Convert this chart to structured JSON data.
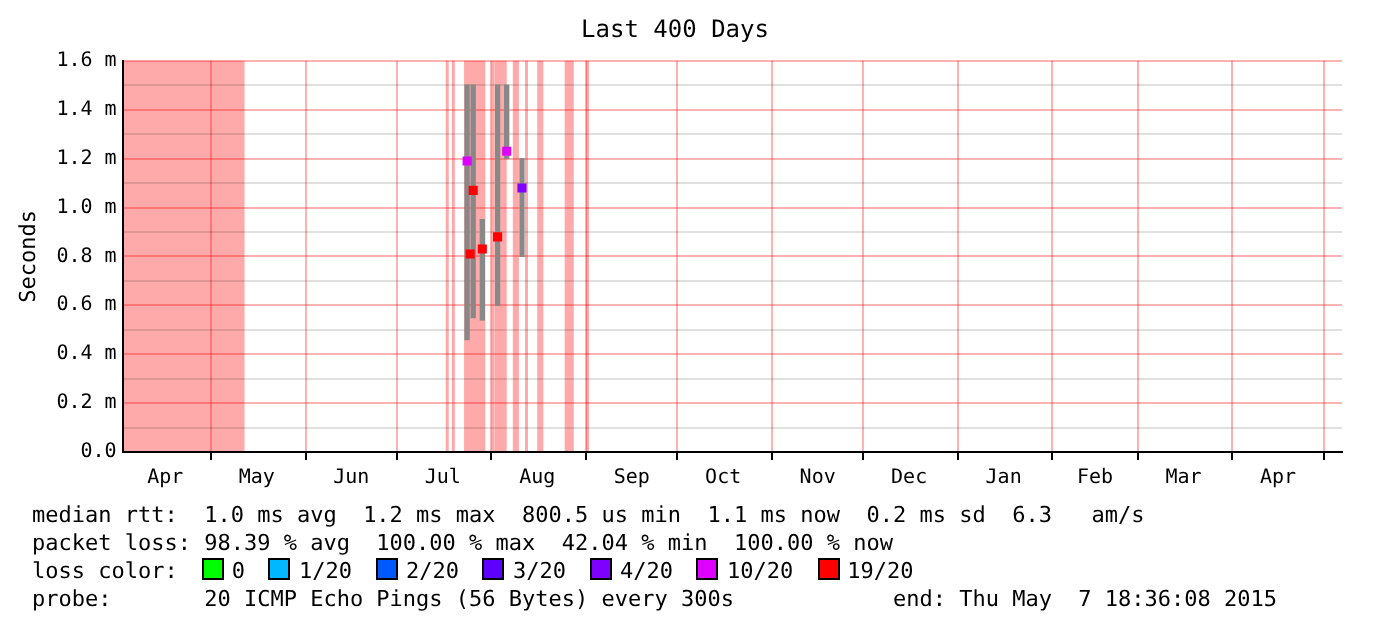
{
  "chart_data": {
    "type": "scatter",
    "title": "Last 400 Days",
    "ylabel": "Seconds",
    "legend_title": "loss color:",
    "legend": "bottom",
    "marker": "square",
    "grid": true,
    "xlim": [
      "2014-04-02",
      "2015-05-07"
    ],
    "xticks": [
      {
        "value": "2014-04-16",
        "label": "Apr"
      },
      {
        "value": "2014-05-01",
        "label": null
      },
      {
        "value": "2014-05-16",
        "label": "May"
      },
      {
        "value": "2014-06-01",
        "label": null
      },
      {
        "value": "2014-06-16",
        "label": "Jun"
      },
      {
        "value": "2014-07-01",
        "label": null
      },
      {
        "value": "2014-07-16",
        "label": "Jul"
      },
      {
        "value": "2014-08-01",
        "label": null
      },
      {
        "value": "2014-08-16",
        "label": "Aug"
      },
      {
        "value": "2014-09-01",
        "label": null
      },
      {
        "value": "2014-09-16",
        "label": "Sep"
      },
      {
        "value": "2014-10-01",
        "label": null
      },
      {
        "value": "2014-10-16",
        "label": "Oct"
      },
      {
        "value": "2014-11-01",
        "label": null
      },
      {
        "value": "2014-11-16",
        "label": "Nov"
      },
      {
        "value": "2014-12-01",
        "label": null
      },
      {
        "value": "2014-12-16",
        "label": "Dec"
      },
      {
        "value": "2015-01-01",
        "label": null
      },
      {
        "value": "2015-01-16",
        "label": "Jan"
      },
      {
        "value": "2015-02-01",
        "label": null
      },
      {
        "value": "2015-02-15",
        "label": "Feb"
      },
      {
        "value": "2015-03-01",
        "label": null
      },
      {
        "value": "2015-03-16",
        "label": "Mar"
      },
      {
        "value": "2015-04-01",
        "label": null
      },
      {
        "value": "2015-04-16",
        "label": "Apr"
      },
      {
        "value": "2015-05-01",
        "label": null
      }
    ],
    "ylim": [
      0,
      1.6
    ],
    "yticks": [
      {
        "value": 0,
        "label": "0.0"
      },
      {
        "value": 0.1,
        "label": null
      },
      {
        "value": 0.2,
        "label": "0.2 m"
      },
      {
        "value": 0.3,
        "label": null
      },
      {
        "value": 0.4,
        "label": "0.4 m"
      },
      {
        "value": 0.5,
        "label": null
      },
      {
        "value": 0.6,
        "label": "0.6 m"
      },
      {
        "value": 0.7,
        "label": null
      },
      {
        "value": 0.8,
        "label": "0.8 m"
      },
      {
        "value": 0.9,
        "label": null
      },
      {
        "value": 1.0,
        "label": "1.0 m"
      },
      {
        "value": 1.1,
        "label": null
      },
      {
        "value": 1.2,
        "label": "1.2 m"
      },
      {
        "value": 1.3,
        "label": null
      },
      {
        "value": 1.4,
        "label": "1.4 m"
      },
      {
        "value": 1.5,
        "label": null
      },
      {
        "value": 1.6,
        "label": "1.6 m"
      }
    ],
    "bands": [
      {
        "axis": "x",
        "from": "2014-04-02",
        "to": "2014-05-12",
        "color": "#ffaaaa"
      },
      {
        "axis": "x",
        "from": "2014-07-17",
        "to": "2014-07-17",
        "color": "#ffaaaa"
      },
      {
        "axis": "x",
        "from": "2014-07-19",
        "to": "2014-07-19",
        "color": "#ffaaaa"
      },
      {
        "axis": "x",
        "from": "2014-07-23",
        "to": "2014-07-30",
        "color": "#ffaaaa"
      },
      {
        "axis": "x",
        "from": "2014-08-01",
        "to": "2014-08-01",
        "color": "#ffaaaa"
      },
      {
        "axis": "x",
        "from": "2014-08-02",
        "to": "2014-08-06",
        "color": "#ffaaaa"
      },
      {
        "axis": "x",
        "from": "2014-08-08",
        "to": "2014-08-10",
        "color": "#ffaaaa"
      },
      {
        "axis": "x",
        "from": "2014-08-12",
        "to": "2014-08-12",
        "color": "#ffaaaa"
      },
      {
        "axis": "x",
        "from": "2014-08-16",
        "to": "2014-08-18",
        "color": "#ffaaaa"
      },
      {
        "axis": "x",
        "from": "2014-08-25",
        "to": "2014-08-28",
        "color": "#ffaaaa"
      },
      {
        "axis": "x",
        "from": "2014-09-01",
        "to": "2014-09-01",
        "color": "#ffaaaa"
      }
    ],
    "series": [
      {
        "type": "bar",
        "color": "#888888",
        "x": [
          "2014-07-24",
          "2014-07-26",
          "2014-07-29",
          "2014-08-03",
          "2014-08-06",
          "2014-08-11"
        ],
        "base": [
          0.46,
          0.55,
          0.54,
          0.6,
          1.2,
          0.8
        ],
        "values": [
          1.04,
          0.95,
          0.41,
          0.9,
          0.3,
          0.4
        ]
      },
      {
        "name": "0",
        "color": "#00ff00"
      },
      {
        "name": "1/20",
        "color": "#00b8ff"
      },
      {
        "name": "2/20",
        "color": "#0059ff"
      },
      {
        "name": "3/20",
        "color": "#5e00ff"
      },
      {
        "name": "4/20",
        "color": "#7e00ff",
        "x": [
          "2014-08-11"
        ],
        "values": [
          1.08
        ]
      },
      {
        "name": "10/20",
        "color": "#dd00ff",
        "x": [
          "2014-07-24",
          "2014-08-06"
        ],
        "values": [
          1.19,
          1.23
        ]
      },
      {
        "name": "19/20",
        "color": "#ff0000",
        "x": [
          "2014-07-25",
          "2014-07-26",
          "2014-07-29",
          "2014-08-03"
        ],
        "values": [
          0.81,
          1.07,
          0.83,
          0.88
        ]
      }
    ],
    "annotations": [
      "median rtt:  1.0 ms avg  1.2 ms max  800.5 us min  1.1 ms now  0.2 ms sd  6.3   am/s",
      "packet loss: 98.39 % avg  100.00 % max  42.04 % min  100.00 % now",
      "probe:       20 ICMP Echo Pings (56 Bytes) every 300s            end: Thu May  7 18:36:08 2015"
    ]
  }
}
